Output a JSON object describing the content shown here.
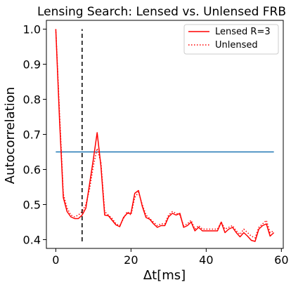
{
  "chart_data": {
    "type": "line",
    "title": "Lensing Search: Lensed vs. Unlensed FRB",
    "xlabel": "Δt[ms]",
    "ylabel": "Autocorrelation",
    "xlim": [
      -2.5,
      60.5
    ],
    "ylim": [
      0.375,
      1.025
    ],
    "xticks": [
      0,
      20,
      40,
      60
    ],
    "yticks": [
      0.4,
      0.5,
      0.6,
      0.7,
      0.8,
      0.9,
      1.0
    ],
    "ytick_labels": [
      "0.4",
      "0.5",
      "0.6",
      "0.7",
      "0.8",
      "0.9",
      "1.0"
    ],
    "legend_position": "top-right",
    "series": [
      {
        "name": "Lensed R=3",
        "style": "solid",
        "color": "#ff0000",
        "x": [
          0,
          1,
          2,
          3,
          4,
          5,
          6,
          7,
          8,
          9,
          10,
          11,
          12,
          13,
          14,
          15,
          16,
          17,
          18,
          19,
          20,
          21,
          22,
          23,
          24,
          25,
          26,
          27,
          28,
          29,
          30,
          31,
          32,
          33,
          34,
          35,
          36,
          37,
          38,
          39,
          40,
          41,
          42,
          43,
          44,
          45,
          46,
          47,
          48,
          49,
          50,
          51,
          52,
          53,
          54,
          55,
          56,
          57,
          58
        ],
        "y": [
          1.0,
          0.74,
          0.52,
          0.48,
          0.465,
          0.46,
          0.46,
          0.47,
          0.49,
          0.56,
          0.63,
          0.705,
          0.61,
          0.47,
          0.468,
          0.455,
          0.442,
          0.437,
          0.463,
          0.475,
          0.475,
          0.532,
          0.54,
          0.495,
          0.463,
          0.458,
          0.445,
          0.435,
          0.44,
          0.44,
          0.465,
          0.475,
          0.47,
          0.475,
          0.435,
          0.44,
          0.45,
          0.425,
          0.435,
          0.425,
          0.425,
          0.425,
          0.425,
          0.425,
          0.45,
          0.42,
          0.43,
          0.435,
          0.42,
          0.408,
          0.42,
          0.41,
          0.398,
          0.395,
          0.43,
          0.44,
          0.445,
          0.41,
          0.42
        ]
      },
      {
        "name": "Unlensed",
        "style": "dotted",
        "color": "#ff0000",
        "x": [
          0,
          1,
          2,
          3,
          4,
          5,
          6,
          7,
          8,
          9,
          10,
          11,
          12,
          13,
          14,
          15,
          16,
          17,
          18,
          19,
          20,
          21,
          22,
          23,
          24,
          25,
          26,
          27,
          28,
          29,
          30,
          31,
          32,
          33,
          34,
          35,
          36,
          37,
          38,
          39,
          40,
          41,
          42,
          43,
          44,
          45,
          46,
          47,
          48,
          49,
          50,
          51,
          52,
          53,
          54,
          55,
          56,
          57,
          58
        ],
        "y": [
          1.0,
          0.76,
          0.53,
          0.49,
          0.47,
          0.465,
          0.47,
          0.48,
          0.5,
          0.545,
          0.61,
          0.66,
          0.62,
          0.48,
          0.47,
          0.46,
          0.445,
          0.44,
          0.46,
          0.48,
          0.47,
          0.52,
          0.535,
          0.5,
          0.47,
          0.46,
          0.45,
          0.44,
          0.445,
          0.445,
          0.47,
          0.48,
          0.475,
          0.47,
          0.44,
          0.445,
          0.455,
          0.43,
          0.44,
          0.43,
          0.43,
          0.43,
          0.43,
          0.43,
          0.45,
          0.43,
          0.435,
          0.44,
          0.425,
          0.415,
          0.43,
          0.42,
          0.41,
          0.405,
          0.435,
          0.445,
          0.455,
          0.42,
          0.425
        ]
      }
    ],
    "reference_lines": [
      {
        "kind": "horizontal",
        "y": 0.65,
        "x_from": 0,
        "x_to": 58,
        "color": "#1f77b4",
        "style": "solid"
      },
      {
        "kind": "vertical",
        "x": 7,
        "y_from": 0.395,
        "y_to": 1.0,
        "color": "#000000",
        "style": "dashed"
      }
    ]
  }
}
